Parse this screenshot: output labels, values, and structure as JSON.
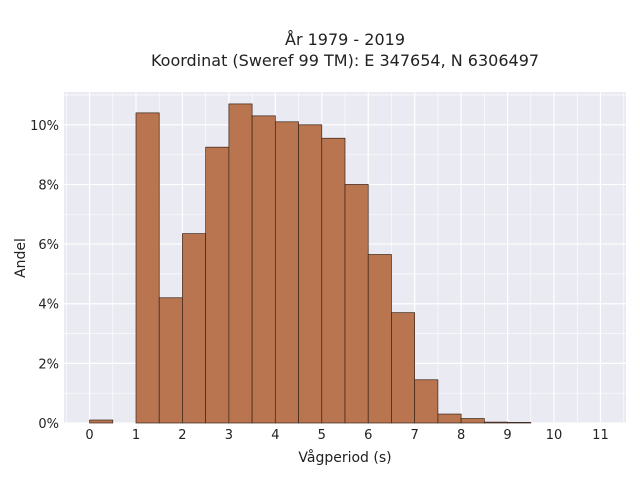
{
  "chart_data": {
    "type": "bar",
    "title": "År 1979 - 2019",
    "subtitle": "Koordinat (Sweref 99 TM): E 347654, N 6306497",
    "xlabel": "Vågperiod (s)",
    "ylabel": "Andel",
    "x_ticks": [
      "0",
      "1",
      "2",
      "3",
      "4",
      "5",
      "6",
      "7",
      "8",
      "9",
      "10",
      "11"
    ],
    "y_ticks": [
      "0%",
      "2%",
      "4%",
      "6%",
      "8%",
      "10%"
    ],
    "xlim": [
      -0.55,
      11.55
    ],
    "ylim": [
      0,
      11.1
    ],
    "bin_width": 0.5,
    "bins": [
      {
        "x0": 0.0,
        "value": 0.1
      },
      {
        "x0": 1.0,
        "value": 10.4
      },
      {
        "x0": 1.5,
        "value": 4.2
      },
      {
        "x0": 2.0,
        "value": 6.35
      },
      {
        "x0": 2.5,
        "value": 9.25
      },
      {
        "x0": 3.0,
        "value": 10.7
      },
      {
        "x0": 3.5,
        "value": 10.3
      },
      {
        "x0": 4.0,
        "value": 10.1
      },
      {
        "x0": 4.5,
        "value": 10.0
      },
      {
        "x0": 5.0,
        "value": 9.55
      },
      {
        "x0": 5.5,
        "value": 8.0
      },
      {
        "x0": 6.0,
        "value": 5.65
      },
      {
        "x0": 6.5,
        "value": 3.7
      },
      {
        "x0": 7.0,
        "value": 1.45
      },
      {
        "x0": 7.5,
        "value": 0.3
      },
      {
        "x0": 8.0,
        "value": 0.15
      },
      {
        "x0": 8.5,
        "value": 0.03
      },
      {
        "x0": 9.0,
        "value": 0.02
      }
    ],
    "grid": true,
    "colors": {
      "bar_fill": "#b87550",
      "bar_edge": "#3a2418",
      "plot_bg": "#eaeaf2",
      "grid": "#ffffff"
    }
  }
}
